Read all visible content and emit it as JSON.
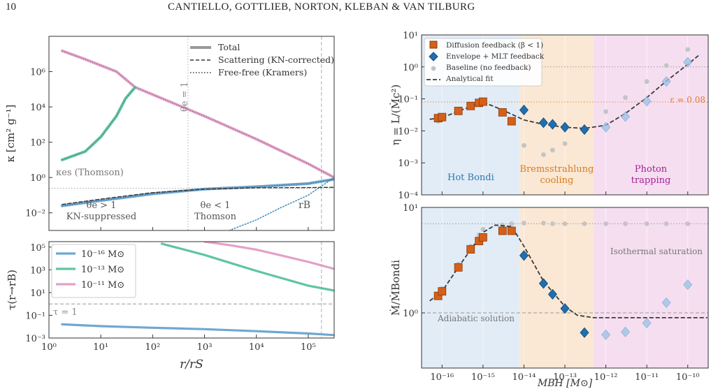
{
  "header": {
    "page_number": "10",
    "running_title": "CANTIELLO, GOTTLIEB, NORTON, KLEBAN & VAN TILBURG"
  },
  "chart_data": [
    {
      "id": "opacity",
      "type": "line",
      "xscale": "log",
      "yscale": "log",
      "xlim": [
        1,
        316228
      ],
      "ylim": [
        0.001,
        100000000
      ],
      "ylabel": "κ [cm² g⁻¹]",
      "xticks": [
        10,
        100,
        1000,
        10000,
        100000
      ],
      "yticks": [
        0.01,
        1,
        100,
        10000,
        1000000
      ],
      "ytick_labels": [
        "10⁻²",
        "10⁰",
        "10²",
        "10⁴",
        "10⁶"
      ],
      "legend": {
        "placement": "top-right",
        "items": [
          "Total",
          "Scattering (KN-corrected)",
          "Free-free (Kramers)"
        ]
      },
      "annotations": {
        "kes": "κes (Thomson)",
        "theta_eq": "θe = 1",
        "theta_gt": "θe > 1",
        "kn_supp": "KN-suppressed",
        "theta_lt": "θe < 1",
        "thomson": "Thomson",
        "rb": "rB"
      },
      "vlines": [
        {
          "x": 480,
          "style": "dotted"
        },
        {
          "x": 180000,
          "style": "dashed"
        }
      ],
      "hlines": [
        {
          "y": 0.25,
          "style": "dotted"
        }
      ],
      "series": [
        {
          "name": "",
          "color": "#e3a1c9",
          "x": [
            1.8,
            5,
            20,
            46,
            100,
            1000,
            10000,
            100000,
            316228
          ],
          "y": [
            15000000,
            5000000,
            1000000,
            130000,
            50000,
            3000,
            150,
            6,
            1
          ]
        },
        {
          "name": "",
          "color": "#5fc4a5",
          "x": [
            1.8,
            5,
            10,
            20,
            30,
            46
          ],
          "y": [
            10,
            30,
            200,
            3000,
            30000,
            130000
          ]
        },
        {
          "name": "",
          "color": "#6fa8d0",
          "x": [
            1.8,
            10,
            100,
            1000,
            10000,
            100000,
            316228
          ],
          "y": [
            0.025,
            0.05,
            0.12,
            0.22,
            0.3,
            0.45,
            0.8
          ]
        },
        {
          "name": "",
          "color": "#333333",
          "style": "dashed",
          "x": [
            1.8,
            10,
            100,
            1000,
            10000,
            100000,
            316228
          ],
          "y": [
            0.03,
            0.06,
            0.14,
            0.22,
            0.26,
            0.27,
            0.28
          ]
        },
        {
          "name": "",
          "color": "#2a7fb5",
          "style": "dotted",
          "x": [
            3000,
            10000,
            30000,
            100000,
            200000,
            316228
          ],
          "y": [
            0.001,
            0.004,
            0.02,
            0.1,
            0.4,
            1
          ]
        }
      ]
    },
    {
      "id": "optical-depth",
      "type": "line",
      "xscale": "log",
      "yscale": "log",
      "xlim": [
        1,
        316228
      ],
      "ylim": [
        0.001,
        300000
      ],
      "xlabel": "r/rS",
      "ylabel": "τ(r→rB)",
      "xticks": [
        1,
        10,
        100,
        1000,
        10000,
        100000
      ],
      "xtick_labels": [
        "10⁰",
        "10¹",
        "10²",
        "10³",
        "10⁴",
        "10⁵"
      ],
      "yticks": [
        0.001,
        0.1,
        10,
        1000,
        100000
      ],
      "ytick_labels": [
        "10⁻³",
        "10⁻¹",
        "10¹",
        "10³",
        "10⁵"
      ],
      "annotations": {
        "tau_one": "τ = 1"
      },
      "hlines": [
        {
          "y": 1,
          "style": "dashed"
        }
      ],
      "vlines": [
        {
          "x": 180000,
          "style": "dashed"
        }
      ],
      "series": [
        {
          "name": "10⁻¹⁶ M⊙",
          "color": "#6fa8d0",
          "x": [
            1.8,
            10,
            100,
            1000,
            10000,
            100000,
            316228
          ],
          "y": [
            0.016,
            0.011,
            0.008,
            0.006,
            0.004,
            0.0025,
            0.0018
          ]
        },
        {
          "name": "10⁻¹³ M⊙",
          "color": "#5fc4a5",
          "x": [
            150,
            1000,
            10000,
            100000,
            316228
          ],
          "y": [
            200000,
            20000,
            800,
            40,
            15
          ]
        },
        {
          "name": "10⁻¹¹ M⊙",
          "color": "#e3a1c9",
          "x": [
            1000,
            3000,
            10000,
            100000,
            316228
          ],
          "y": [
            300000,
            150000,
            60000,
            5000,
            1200
          ]
        }
      ]
    },
    {
      "id": "efficiency",
      "type": "scatter",
      "xscale": "log",
      "yscale": "log",
      "xlim": [
        3.16e-17,
        3.16e-10
      ],
      "ylim": [
        0.0001,
        10
      ],
      "ylabel": "η = L/(Ṁc²)",
      "yticks": [
        0.0001,
        0.001,
        0.01,
        0.1,
        1,
        10
      ],
      "ytick_labels": [
        "10⁻⁴",
        "10⁻³",
        "10⁻²",
        "10⁻¹",
        "10⁰",
        "10¹"
      ],
      "legend": {
        "placement": "top-left",
        "items": [
          "Diffusion feedback (β < 1)",
          "Envelope + MLT feedback",
          "Baseline (no feedback)",
          "Analytical fit"
        ]
      },
      "regions": [
        {
          "label": "Hot Bondi",
          "x0": 3.16e-17,
          "x1": 8e-15,
          "color": "#dce9f4",
          "text_color": "#2d77ad"
        },
        {
          "label": "Bremsstrahlung cooling",
          "x0": 8e-15,
          "x1": 5e-13,
          "color": "#f9e4cd",
          "text_color": "#d97a1d"
        },
        {
          "label": "Photon trapping",
          "x0": 5e-13,
          "x1": 3.16e-10,
          "color": "#f5d8ee",
          "text_color": "#a61f96"
        }
      ],
      "annotations": {
        "epsilon": "ε = 0.08"
      },
      "hlines": [
        {
          "y": 1,
          "style": "dotted",
          "color": "#999999"
        },
        {
          "y": 0.08,
          "style": "dotted",
          "color": "#e88a3c"
        }
      ],
      "diffusion": {
        "x": [
          8e-17,
          1e-16,
          2.5e-16,
          5e-16,
          8e-16,
          1e-15,
          3e-15,
          5e-15
        ],
        "y": [
          0.025,
          0.027,
          0.042,
          0.06,
          0.075,
          0.082,
          0.038,
          0.02
        ]
      },
      "envelope": {
        "x": [
          1e-14,
          3e-14,
          5e-14,
          1e-13,
          3e-13,
          1e-12,
          3e-12,
          1e-11,
          3e-11,
          1e-10
        ],
        "y": [
          0.045,
          0.018,
          0.016,
          0.013,
          0.011,
          0.013,
          0.028,
          0.085,
          0.35,
          1.4
        ]
      },
      "baseline": {
        "x": [
          8e-17,
          1e-16,
          2.5e-16,
          5e-16,
          8e-16,
          1e-15,
          1e-14,
          3e-14,
          5e-14,
          1e-13,
          1e-12,
          3e-12,
          1e-11,
          3e-11,
          1e-10
        ],
        "y": [
          0.02,
          0.022,
          0.04,
          0.06,
          0.075,
          0.08,
          0.0035,
          0.0018,
          0.0025,
          0.004,
          0.04,
          0.11,
          0.35,
          1.1,
          3.5
        ]
      },
      "fit": {
        "x": [
          5e-17,
          1e-16,
          3e-16,
          1e-15,
          3e-15,
          1e-14,
          3e-14,
          1e-13,
          3e-13,
          1e-12,
          3e-12,
          1e-11,
          3e-11,
          1e-10,
          2e-10
        ],
        "y": [
          0.023,
          0.026,
          0.045,
          0.08,
          0.045,
          0.022,
          0.016,
          0.013,
          0.012,
          0.015,
          0.035,
          0.11,
          0.36,
          1.2,
          2.5
        ]
      }
    },
    {
      "id": "accretion-rate",
      "type": "scatter",
      "xscale": "log",
      "yscale": "log",
      "xlim": [
        3.16e-17,
        3.16e-10
      ],
      "ylim": [
        0.3,
        10
      ],
      "xlabel": "MBH [M⊙]",
      "ylabel": "Ṁ/ṀBondi",
      "xticks": [
        1e-16,
        1e-15,
        1e-14,
        1e-13,
        1e-12,
        1e-11,
        1e-10
      ],
      "xtick_labels": [
        "10⁻¹⁶",
        "10⁻¹⁵",
        "10⁻¹⁴",
        "10⁻¹³",
        "10⁻¹²",
        "10⁻¹¹",
        "10⁻¹⁰"
      ],
      "yticks": [
        1,
        10
      ],
      "ytick_labels": [
        "10⁰",
        "10¹"
      ],
      "annotations": {
        "isothermal": "Isothermal saturation",
        "adiabatic": "Adiabatic solution"
      },
      "hlines": [
        {
          "y": 7,
          "style": "dotted",
          "color": "#999999"
        },
        {
          "y": 1,
          "style": "dashed",
          "color": "#999999"
        }
      ],
      "diffusion": {
        "x": [
          8e-17,
          1e-16,
          2.5e-16,
          5e-16,
          8e-16,
          1e-15,
          3e-15,
          5e-15
        ],
        "y": [
          1.45,
          1.6,
          2.7,
          4,
          4.8,
          5.2,
          6,
          6
        ]
      },
      "envelope": {
        "x": [
          1e-14,
          3e-14,
          5e-14,
          1e-13,
          3e-13,
          1e-12,
          3e-12,
          1e-11,
          3e-11,
          1e-10
        ],
        "y": [
          3.5,
          1.9,
          1.5,
          1.1,
          0.65,
          0.62,
          0.66,
          0.8,
          1.25,
          1.85
        ]
      },
      "baseline": {
        "x": [
          8e-17,
          1e-16,
          2.5e-16,
          5e-16,
          8e-16,
          1e-15,
          3e-15,
          5e-15,
          1e-14,
          3e-14,
          5e-14,
          1e-13,
          3e-13,
          1e-12,
          3e-12,
          1e-11,
          3e-11,
          1e-10
        ],
        "y": [
          1.5,
          1.7,
          2.9,
          4.3,
          5.5,
          6.2,
          6.8,
          7,
          7.1,
          7.1,
          7,
          7,
          7,
          7,
          7,
          7,
          7,
          7
        ]
      },
      "fit": {
        "x": [
          5e-17,
          1e-16,
          3e-16,
          1e-15,
          2e-15,
          5e-15,
          1e-14,
          3e-14,
          1e-13,
          2e-13,
          5e-13,
          1e-12,
          1e-11,
          3e-10
        ],
        "y": [
          1.3,
          1.6,
          3,
          5.8,
          6.8,
          6.6,
          4.3,
          2,
          1.15,
          0.95,
          0.9,
          0.9,
          0.9,
          0.9
        ]
      }
    }
  ]
}
